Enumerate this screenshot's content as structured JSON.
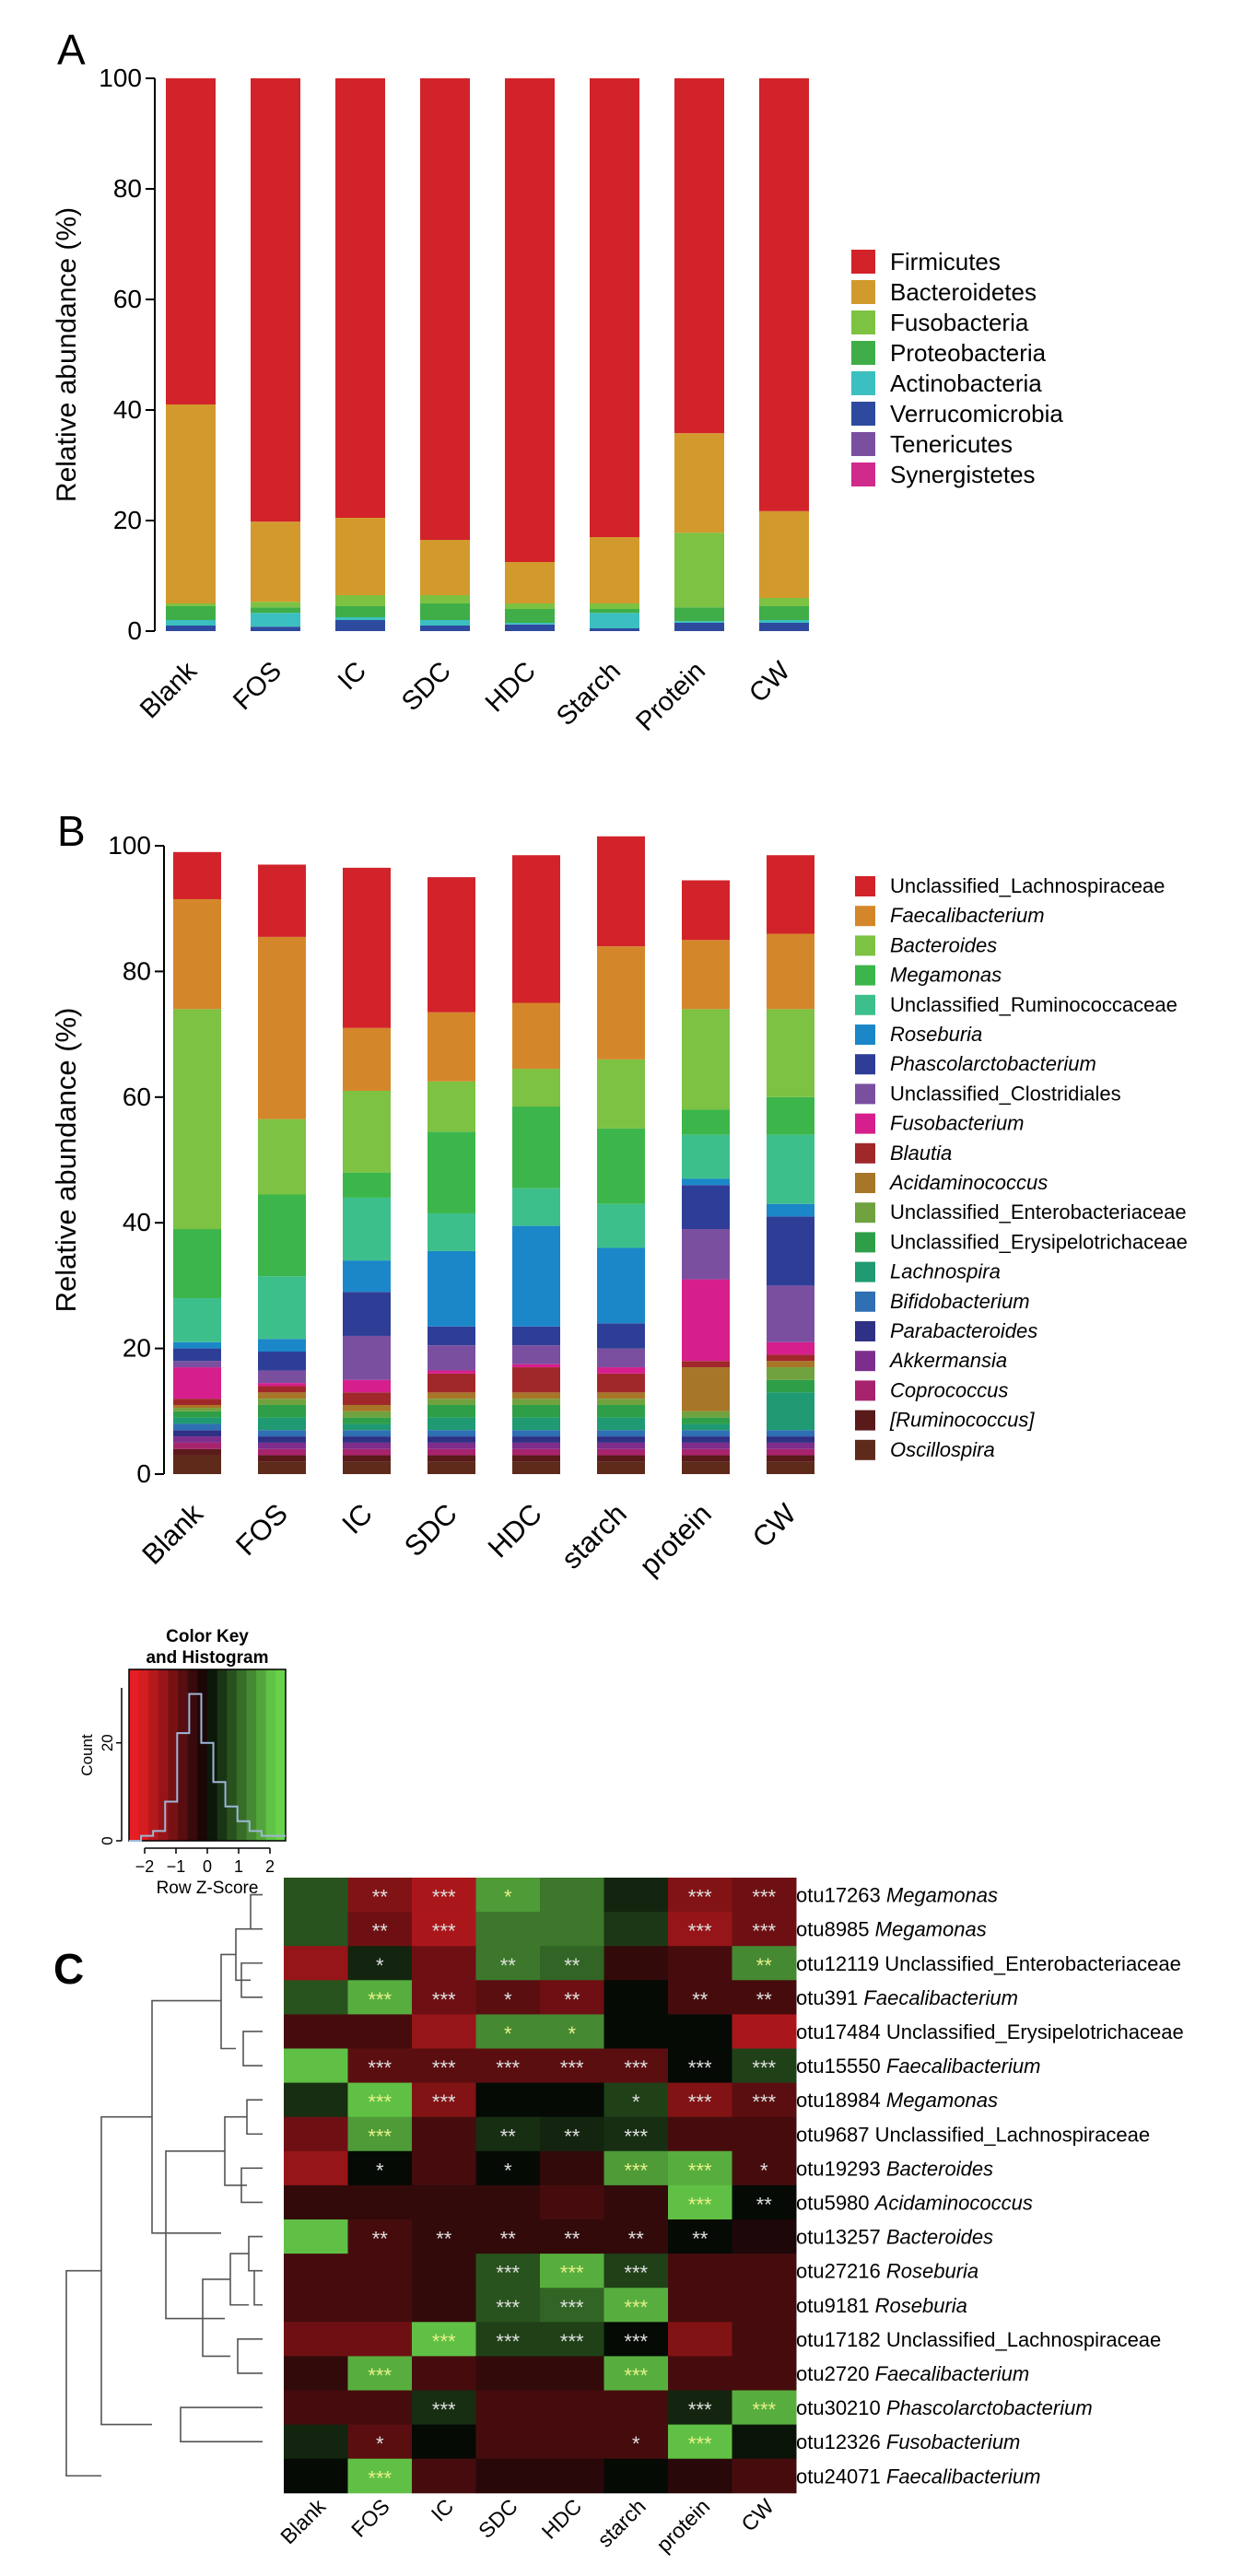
{
  "colors": {
    "phylum": [
      "#d2232a",
      "#d29a2d",
      "#7dc242",
      "#3fae49",
      "#3cbfc0",
      "#2e4a9e",
      "#7b4fa0",
      "#d02a8c"
    ],
    "genus": [
      "#d2232a",
      "#d4872a",
      "#7dc242",
      "#3cb64a",
      "#3dbf8c",
      "#1b87c9",
      "#2e3e96",
      "#7b4fa0",
      "#d61f8c",
      "#a0282b",
      "#a87628",
      "#70a23f",
      "#2e9f48",
      "#1f9a73",
      "#2f6fb3",
      "#2e3185",
      "#7d2e8c",
      "#a8236e",
      "#5a1a1a",
      "#5e2a1a"
    ]
  },
  "chart_data": [
    {
      "panel_label": "A",
      "type": "bar",
      "stacked": true,
      "ylabel": "Relative abundance (%)",
      "ylim": [
        0,
        100
      ],
      "yticks": [
        "0",
        "20",
        "40",
        "60",
        "80",
        "100"
      ],
      "categories": [
        "Blank",
        "FOS",
        "IC",
        "SDC",
        "HDC",
        "Starch",
        "Protein",
        "CW"
      ],
      "legend_position": "right",
      "series": [
        {
          "name": "Verrucomicrobia",
          "values": [
            1.0,
            0.8,
            2.0,
            1.0,
            1.2,
            0.5,
            1.5,
            1.5
          ]
        },
        {
          "name": "Actinobacteria",
          "values": [
            1.0,
            2.5,
            0.5,
            1.0,
            0.3,
            2.8,
            0.3,
            0.5
          ]
        },
        {
          "name": "Proteobacteria",
          "values": [
            2.5,
            1.0,
            2.0,
            3.0,
            2.5,
            0.7,
            2.5,
            2.5
          ]
        },
        {
          "name": "Fusobacteria",
          "values": [
            0.5,
            1.0,
            2.0,
            1.5,
            1.0,
            1.0,
            13.5,
            1.5
          ]
        },
        {
          "name": "Bacteroidetes",
          "values": [
            36.0,
            14.5,
            14.0,
            10.0,
            7.5,
            12.0,
            18.0,
            15.7
          ]
        },
        {
          "name": "Firmicutes",
          "values": [
            59.0,
            80.2,
            79.5,
            83.5,
            87.5,
            83.0,
            64.2,
            78.3
          ]
        },
        {
          "name": "Tenericutes",
          "values": [
            0,
            0,
            0,
            0,
            0,
            0,
            0,
            0
          ]
        },
        {
          "name": "Synergistetes",
          "values": [
            0,
            0,
            0,
            0,
            0,
            0,
            0,
            0
          ]
        }
      ],
      "legend": [
        "Firmicutes",
        "Bacteroidetes",
        "Fusobacteria",
        "Proteobacteria",
        "Actinobacteria",
        "Verrucomicrobia",
        "Tenericutes",
        "Synergistetes"
      ]
    },
    {
      "panel_label": "B",
      "type": "bar",
      "stacked": true,
      "ylabel": "Relative abundance (%)",
      "ylim": [
        0,
        100
      ],
      "yticks": [
        "0",
        "20",
        "40",
        "60",
        "80",
        "100"
      ],
      "categories": [
        "Blank",
        "FOS",
        "IC",
        "SDC",
        "HDC",
        "starch",
        "protein",
        "CW"
      ],
      "legend_position": "right",
      "legend": [
        "Unclassified_Lachnospiraceae",
        "Faecalibacterium",
        "Bacteroides",
        "Megamonas",
        "Unclassified_Ruminococcaceae",
        "Roseburia",
        "Phascolarctobacterium",
        "Unclassified_Clostridiales",
        "Fusobacterium",
        "Blautia",
        "Acidaminococcus",
        "Unclassified_Enterobacteriaceae",
        "Unclassified_Erysipelotrichaceae",
        "Lachnospira",
        "Bifidobacterium",
        "Parabacteroides",
        "Akkermansia",
        "Coprococcus",
        "[Ruminococcus]",
        "Oscillospira"
      ],
      "legend_italic": [
        false,
        true,
        true,
        true,
        false,
        true,
        true,
        false,
        true,
        true,
        true,
        false,
        false,
        true,
        true,
        true,
        true,
        true,
        true,
        true
      ],
      "series_bottom_to_top": [
        {
          "name": "Oscillospira",
          "values": [
            3,
            2,
            2,
            2,
            2,
            2,
            2,
            2
          ]
        },
        {
          "name": "[Ruminococcus]",
          "values": [
            1,
            1,
            1,
            1,
            1,
            1,
            1,
            1
          ]
        },
        {
          "name": "Coprococcus",
          "values": [
            1,
            1,
            1,
            1,
            1,
            1,
            1,
            1
          ]
        },
        {
          "name": "Akkermansia",
          "values": [
            1,
            1,
            1,
            1,
            1,
            1,
            1,
            1
          ]
        },
        {
          "name": "Parabacteroides",
          "values": [
            1,
            1,
            1,
            1,
            1,
            1,
            1,
            1
          ]
        },
        {
          "name": "Bifidobacterium",
          "values": [
            1,
            1,
            1,
            1,
            1,
            1,
            1,
            1
          ]
        },
        {
          "name": "Lachnospira",
          "values": [
            1,
            2,
            1,
            2,
            2,
            2,
            1,
            6
          ]
        },
        {
          "name": "Unclassified_Erysipelotrichaceae",
          "values": [
            1,
            2,
            1,
            2,
            2,
            2,
            1,
            2
          ]
        },
        {
          "name": "Unclassified_Enterobacteriaceae",
          "values": [
            0.5,
            1,
            1,
            1,
            1,
            1,
            1,
            2
          ]
        },
        {
          "name": "Acidaminococcus",
          "values": [
            0.5,
            1,
            1,
            1,
            1,
            1,
            7,
            1
          ]
        },
        {
          "name": "Blautia",
          "values": [
            1,
            1,
            2,
            3,
            4,
            3,
            1,
            1
          ]
        },
        {
          "name": "Fusobacterium",
          "values": [
            5,
            0.5,
            2,
            0.5,
            0.5,
            1,
            13,
            2
          ]
        },
        {
          "name": "Unclassified_Clostridiales",
          "values": [
            1,
            2,
            7,
            4,
            3,
            3,
            8,
            9
          ]
        },
        {
          "name": "Phascolarctobacterium",
          "values": [
            2,
            3,
            7,
            3,
            3,
            4,
            7,
            11
          ]
        },
        {
          "name": "Roseburia",
          "values": [
            1,
            2,
            5,
            12,
            16,
            12,
            1,
            2
          ]
        },
        {
          "name": "Unclassified_Ruminococcaceae",
          "values": [
            7,
            10,
            10,
            6,
            6,
            7,
            7,
            11
          ]
        },
        {
          "name": "Megamonas",
          "values": [
            11,
            13,
            4,
            13,
            13,
            12,
            4,
            6
          ]
        },
        {
          "name": "Bacteroides",
          "values": [
            35,
            12,
            13,
            8,
            6,
            11,
            16,
            14
          ]
        },
        {
          "name": "Faecalibacterium",
          "values": [
            17.5,
            29,
            10,
            11,
            10.5,
            18,
            11,
            12
          ]
        },
        {
          "name": "Unclassified_Lachnospiraceae",
          "values": [
            7.5,
            11.5,
            25.5,
            21.5,
            23.5,
            17.5,
            9.5,
            12.5
          ]
        }
      ]
    },
    {
      "panel_label": "C",
      "type": "heatmap",
      "color_key": {
        "title_line1": "Color Key",
        "title_line2": "and Histogram",
        "ylabel": "Count",
        "yticks": [
          "0",
          "20"
        ],
        "xticks": [
          "−2",
          "−1",
          "0",
          "1",
          "2"
        ],
        "xlabel": "Row Z-Score",
        "zlim": [
          -2.5,
          2.5
        ],
        "histogram": [
          0,
          1,
          2,
          8,
          22,
          30,
          20,
          12,
          7,
          4,
          2,
          1,
          1
        ]
      },
      "columns": [
        "Blank",
        "FOS",
        "IC",
        "SDC",
        "HDC",
        "starch",
        "protein",
        "CW"
      ],
      "rows": [
        {
          "otu": "otu17263",
          "taxon": "Megamonas",
          "italic": true,
          "z": [
            0.8,
            -1.2,
            -1.6,
            1.6,
            1.2,
            0.3,
            -1.2,
            -1.0
          ],
          "stars": [
            "",
            "**",
            "***",
            "*",
            "",
            "",
            "***",
            "***"
          ]
        },
        {
          "otu": "otu8985",
          "taxon": "Megamonas",
          "italic": true,
          "z": [
            0.8,
            -1.0,
            -1.6,
            1.2,
            1.2,
            0.5,
            -1.4,
            -1.0
          ],
          "stars": [
            "",
            "**",
            "***",
            "",
            "",
            "",
            "***",
            "***"
          ]
        },
        {
          "otu": "otu12119",
          "taxon": "Unclassified_Enterobacteriaceae",
          "italic": false,
          "z": [
            -1.4,
            0.3,
            -1.0,
            1.2,
            1.0,
            -0.4,
            -0.6,
            1.4
          ],
          "stars": [
            "",
            "*",
            "",
            "**",
            "**",
            "",
            "",
            "**"
          ]
        },
        {
          "otu": "otu391",
          "taxon": "Faecalibacterium",
          "italic": true,
          "z": [
            0.8,
            1.8,
            -1.0,
            -0.8,
            -1.0,
            0,
            -0.6,
            -0.6
          ],
          "stars": [
            "",
            "***",
            "***",
            "*",
            "**",
            "",
            "**",
            "**"
          ]
        },
        {
          "otu": "otu17484",
          "taxon": "Unclassified_Erysipelotrichaceae",
          "italic": false,
          "z": [
            -0.6,
            -0.6,
            -1.4,
            1.4,
            1.4,
            0,
            0,
            -1.6
          ],
          "stars": [
            "",
            "",
            "",
            "*",
            "*",
            "",
            "",
            ""
          ]
        },
        {
          "otu": "otu15550",
          "taxon": "Faecalibacterium",
          "italic": true,
          "z": [
            2.0,
            -0.8,
            -0.8,
            -0.8,
            -0.8,
            -0.8,
            0,
            0.6
          ],
          "stars": [
            "",
            "***",
            "***",
            "***",
            "***",
            "***",
            "***",
            "***"
          ]
        },
        {
          "otu": "otu18984",
          "taxon": "Megamonas",
          "italic": true,
          "z": [
            0.4,
            2.0,
            -1.2,
            0,
            0,
            0.6,
            -1.2,
            -0.8
          ],
          "stars": [
            "",
            "***",
            "***",
            "",
            "",
            "*",
            "***",
            "***"
          ]
        },
        {
          "otu": "otu9687",
          "taxon": "Unclassified_Lachnospiraceae",
          "italic": false,
          "z": [
            -1.0,
            1.6,
            -0.6,
            0.4,
            0.3,
            0.4,
            -0.6,
            -0.6
          ],
          "stars": [
            "",
            "***",
            "",
            "**",
            "**",
            "***",
            "",
            ""
          ]
        },
        {
          "otu": "otu19293",
          "taxon": "Bacteroides",
          "italic": true,
          "z": [
            -1.4,
            0,
            -0.6,
            0,
            -0.4,
            1.6,
            1.8,
            -0.6
          ],
          "stars": [
            "",
            "*",
            "",
            "*",
            "",
            "***",
            "***",
            "*"
          ]
        },
        {
          "otu": "otu5980",
          "taxon": "Acidaminococcus",
          "italic": true,
          "z": [
            -0.4,
            -0.4,
            -0.4,
            -0.4,
            -0.6,
            -0.4,
            2.0,
            0
          ],
          "stars": [
            "",
            "",
            "",
            "",
            "",
            "",
            "***",
            "**"
          ]
        },
        {
          "otu": "otu13257",
          "taxon": "Bacteroides",
          "italic": true,
          "z": [
            2.0,
            -0.6,
            -0.4,
            -0.4,
            -0.4,
            -0.4,
            0,
            -0.2
          ],
          "stars": [
            "",
            "**",
            "**",
            "**",
            "**",
            "**",
            "**",
            ""
          ]
        },
        {
          "otu": "otu27216",
          "taxon": "Roseburia",
          "italic": true,
          "z": [
            -0.6,
            -0.6,
            -0.4,
            0.8,
            1.8,
            0.6,
            -0.6,
            -0.6
          ],
          "stars": [
            "",
            "",
            "",
            "***",
            "***",
            "***",
            "",
            ""
          ]
        },
        {
          "otu": "otu9181",
          "taxon": "Roseburia",
          "italic": true,
          "z": [
            -0.6,
            -0.6,
            -0.4,
            0.8,
            1.0,
            1.8,
            -0.6,
            -0.6
          ],
          "stars": [
            "",
            "",
            "",
            "***",
            "***",
            "***",
            "",
            ""
          ]
        },
        {
          "otu": "otu17182",
          "taxon": "Unclassified_Lachnospiraceae",
          "italic": false,
          "z": [
            -1.0,
            -1.0,
            2.0,
            0.6,
            0.6,
            0,
            -1.2,
            -0.6
          ],
          "stars": [
            "",
            "",
            "***",
            "***",
            "***",
            "***",
            "",
            ""
          ]
        },
        {
          "otu": "otu2720",
          "taxon": "Faecalibacterium",
          "italic": true,
          "z": [
            -0.4,
            1.8,
            -0.6,
            -0.4,
            -0.4,
            1.8,
            -0.6,
            -0.6
          ],
          "stars": [
            "",
            "***",
            "",
            "",
            "",
            "***",
            "",
            ""
          ]
        },
        {
          "otu": "otu30210",
          "taxon": "Phascolarctobacterium",
          "italic": true,
          "z": [
            -0.6,
            -0.6,
            0.4,
            -0.6,
            -0.6,
            -0.6,
            0.3,
            1.8
          ],
          "stars": [
            "",
            "",
            "***",
            "",
            "",
            "",
            "***",
            "***"
          ]
        },
        {
          "otu": "otu12326",
          "taxon": "Fusobacterium",
          "italic": true,
          "z": [
            0.3,
            -0.8,
            0,
            -0.6,
            -0.6,
            -0.6,
            2.0,
            0.1
          ],
          "stars": [
            "",
            "*",
            "",
            "",
            "",
            "*",
            "***",
            ""
          ]
        },
        {
          "otu": "otu24071",
          "taxon": "Faecalibacterium",
          "italic": true,
          "z": [
            0,
            2.0,
            -0.6,
            -0.3,
            -0.3,
            0,
            -0.3,
            -0.6
          ],
          "stars": [
            "",
            "***",
            "",
            "",
            "",
            "",
            "",
            ""
          ]
        }
      ]
    }
  ]
}
